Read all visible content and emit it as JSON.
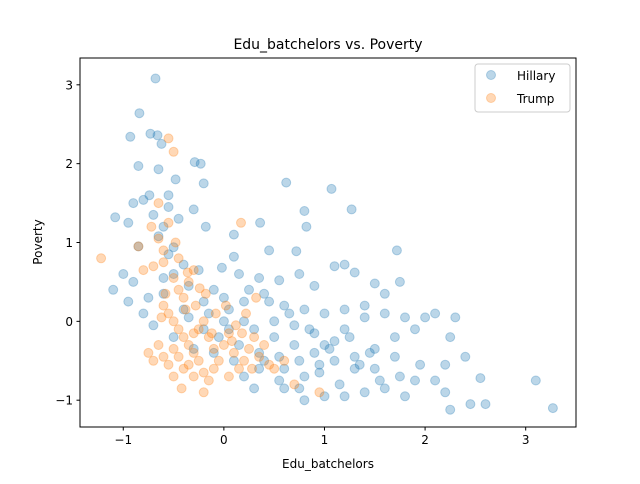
{
  "chart_data": {
    "type": "scatter",
    "title": "Edu_batchelors vs. Poverty",
    "xlabel": "Edu_batchelors",
    "ylabel": "Poverty",
    "xlim": [
      -1.43,
      3.5
    ],
    "ylim": [
      -1.34,
      3.34
    ],
    "xticks": [
      -1,
      0,
      1,
      2,
      3
    ],
    "yticks": [
      -1,
      0,
      1,
      2,
      3
    ],
    "xtick_labels": [
      "−1",
      "0",
      "1",
      "2",
      "3"
    ],
    "ytick_labels": [
      "−1",
      "0",
      "1",
      "2",
      "3"
    ],
    "grid": false,
    "legend_position": "top-right",
    "series": [
      {
        "name": "Hillary",
        "color": "#1f77b4",
        "alpha": 0.3,
        "points": [
          [
            -0.68,
            3.08
          ],
          [
            -0.84,
            2.64
          ],
          [
            -0.66,
            2.36
          ],
          [
            -0.73,
            2.38
          ],
          [
            -0.93,
            2.34
          ],
          [
            -0.62,
            2.25
          ],
          [
            -0.29,
            2.02
          ],
          [
            -0.23,
            2.0
          ],
          [
            -0.48,
            1.8
          ],
          [
            -0.85,
            1.97
          ],
          [
            -0.65,
            1.93
          ],
          [
            -0.2,
            1.75
          ],
          [
            -0.74,
            1.6
          ],
          [
            -0.8,
            1.54
          ],
          [
            -0.55,
            1.45
          ],
          [
            -0.3,
            1.42
          ],
          [
            -0.45,
            1.3
          ],
          [
            -0.6,
            1.2
          ],
          [
            -1.08,
            1.32
          ],
          [
            -0.95,
            1.25
          ],
          [
            -0.5,
            0.94
          ],
          [
            -0.65,
            1.08
          ],
          [
            -0.55,
            0.85
          ],
          [
            -0.4,
            0.72
          ],
          [
            -0.18,
            1.2
          ],
          [
            0.1,
            1.1
          ],
          [
            0.62,
            1.76
          ],
          [
            1.07,
            1.68
          ],
          [
            1.27,
            1.42
          ],
          [
            0.8,
            1.4
          ],
          [
            0.36,
            1.25
          ],
          [
            0.82,
            1.2
          ],
          [
            0.72,
            0.89
          ],
          [
            0.45,
            0.9
          ],
          [
            0.1,
            0.82
          ],
          [
            -0.02,
            0.68
          ],
          [
            0.15,
            0.6
          ],
          [
            0.35,
            0.55
          ],
          [
            0.55,
            0.52
          ],
          [
            0.75,
            0.6
          ],
          [
            0.9,
            0.45
          ],
          [
            1.1,
            0.7
          ],
          [
            1.2,
            0.72
          ],
          [
            1.3,
            0.62
          ],
          [
            1.5,
            0.48
          ],
          [
            1.72,
            0.9
          ],
          [
            1.75,
            0.5
          ],
          [
            1.6,
            0.35
          ],
          [
            -1.0,
            0.6
          ],
          [
            -1.1,
            0.4
          ],
          [
            -0.95,
            0.25
          ],
          [
            -0.9,
            0.5
          ],
          [
            -0.75,
            0.3
          ],
          [
            -0.6,
            0.35
          ],
          [
            -0.8,
            0.1
          ],
          [
            -0.7,
            -0.05
          ],
          [
            -0.4,
            0.15
          ],
          [
            -0.2,
            0.25
          ],
          [
            0.0,
            0.3
          ],
          [
            0.2,
            0.25
          ],
          [
            0.4,
            0.35
          ],
          [
            0.6,
            0.2
          ],
          [
            0.8,
            0.15
          ],
          [
            1.0,
            0.1
          ],
          [
            1.2,
            0.15
          ],
          [
            1.4,
            0.2
          ],
          [
            1.6,
            0.1
          ],
          [
            1.8,
            0.05
          ],
          [
            2.0,
            0.05
          ],
          [
            2.1,
            0.1
          ],
          [
            2.3,
            0.05
          ],
          [
            2.25,
            -0.2
          ],
          [
            2.4,
            -0.45
          ],
          [
            2.2,
            -0.55
          ],
          [
            1.95,
            -0.55
          ],
          [
            1.75,
            -0.7
          ],
          [
            1.6,
            -0.85
          ],
          [
            1.4,
            -0.9
          ],
          [
            1.2,
            -0.95
          ],
          [
            1.0,
            -0.95
          ],
          [
            0.8,
            -1.0
          ],
          [
            0.6,
            -0.85
          ],
          [
            0.3,
            -0.85
          ],
          [
            0.2,
            -0.7
          ],
          [
            0.1,
            -0.5
          ],
          [
            -0.1,
            -0.4
          ],
          [
            -0.3,
            -0.35
          ],
          [
            -0.5,
            -0.2
          ],
          [
            0.05,
            -0.1
          ],
          [
            0.3,
            -0.1
          ],
          [
            0.5,
            -0.2
          ],
          [
            0.7,
            -0.3
          ],
          [
            0.9,
            -0.4
          ],
          [
            1.1,
            -0.5
          ],
          [
            1.3,
            -0.6
          ],
          [
            1.5,
            -0.35
          ],
          [
            1.7,
            -0.2
          ],
          [
            1.9,
            -0.1
          ],
          [
            0.4,
            -0.5
          ],
          [
            0.6,
            -0.6
          ],
          [
            0.8,
            -0.7
          ],
          [
            1.0,
            -0.3
          ],
          [
            1.2,
            -0.1
          ],
          [
            1.4,
            0.05
          ],
          [
            0.2,
            0.0
          ],
          [
            0.0,
            0.0
          ],
          [
            -0.2,
            -0.1
          ],
          [
            0.5,
            0.0
          ],
          [
            0.7,
            -0.05
          ],
          [
            0.9,
            -0.15
          ],
          [
            1.1,
            -0.25
          ],
          [
            1.3,
            -0.45
          ],
          [
            1.5,
            -0.6
          ],
          [
            1.7,
            -0.45
          ],
          [
            1.9,
            -0.75
          ],
          [
            2.1,
            -0.75
          ],
          [
            2.45,
            -1.05
          ],
          [
            2.6,
            -1.05
          ],
          [
            2.55,
            -0.72
          ],
          [
            2.25,
            -1.12
          ],
          [
            3.1,
            -0.75
          ],
          [
            3.27,
            -1.1
          ],
          [
            2.2,
            -0.9
          ],
          [
            1.8,
            -0.95
          ],
          [
            1.55,
            -0.75
          ],
          [
            0.35,
            -0.6
          ],
          [
            0.55,
            -0.75
          ],
          [
            0.75,
            -0.85
          ],
          [
            0.95,
            -0.65
          ],
          [
            1.15,
            -0.8
          ],
          [
            1.35,
            -0.55
          ],
          [
            -0.35,
            0.05
          ],
          [
            -0.15,
            0.1
          ],
          [
            0.05,
            0.15
          ],
          [
            0.25,
            0.4
          ],
          [
            0.45,
            0.25
          ],
          [
            0.65,
            0.1
          ],
          [
            0.85,
            -0.1
          ],
          [
            1.05,
            -0.35
          ],
          [
            1.25,
            -0.2
          ],
          [
            1.45,
            -0.4
          ],
          [
            -0.05,
            -0.2
          ],
          [
            0.15,
            -0.3
          ],
          [
            0.35,
            -0.4
          ],
          [
            0.55,
            -0.45
          ],
          [
            0.75,
            -0.5
          ],
          [
            0.95,
            -0.55
          ],
          [
            -0.6,
            0.55
          ],
          [
            -0.5,
            0.6
          ],
          [
            -0.35,
            0.45
          ],
          [
            -0.25,
            0.65
          ],
          [
            -0.1,
            0.4
          ],
          [
            -0.85,
            0.95
          ],
          [
            -0.7,
            1.35
          ],
          [
            -0.9,
            1.5
          ],
          [
            -0.55,
            1.6
          ]
        ]
      },
      {
        "name": "Trump",
        "color": "#ff7f0e",
        "alpha": 0.3,
        "points": [
          [
            -1.22,
            0.8
          ],
          [
            -0.55,
            2.32
          ],
          [
            -0.5,
            2.15
          ],
          [
            -0.65,
            1.5
          ],
          [
            -0.85,
            0.95
          ],
          [
            -0.8,
            0.65
          ],
          [
            -0.7,
            0.7
          ],
          [
            -0.6,
            0.9
          ],
          [
            -0.5,
            0.55
          ],
          [
            -0.45,
            0.8
          ],
          [
            -0.4,
            0.3
          ],
          [
            -0.35,
            0.5
          ],
          [
            -0.3,
            0.65
          ],
          [
            0.17,
            1.25
          ],
          [
            -0.6,
            0.2
          ],
          [
            -0.55,
            0.1
          ],
          [
            -0.5,
            0.0
          ],
          [
            -0.45,
            -0.1
          ],
          [
            -0.4,
            -0.2
          ],
          [
            -0.35,
            -0.3
          ],
          [
            -0.3,
            -0.4
          ],
          [
            -0.25,
            -0.1
          ],
          [
            -0.2,
            0.0
          ],
          [
            -0.15,
            -0.2
          ],
          [
            -0.1,
            -0.35
          ],
          [
            -0.05,
            -0.5
          ],
          [
            0.0,
            -0.3
          ],
          [
            0.05,
            -0.15
          ],
          [
            0.1,
            -0.4
          ],
          [
            0.15,
            -0.6
          ],
          [
            0.2,
            -0.5
          ],
          [
            0.25,
            -0.35
          ],
          [
            0.3,
            -0.2
          ],
          [
            0.35,
            -0.45
          ],
          [
            0.4,
            -0.3
          ],
          [
            0.45,
            -0.55
          ],
          [
            0.5,
            -0.6
          ],
          [
            -0.65,
            -0.3
          ],
          [
            -0.7,
            -0.5
          ],
          [
            -0.75,
            -0.4
          ],
          [
            -0.6,
            -0.45
          ],
          [
            -0.55,
            -0.55
          ],
          [
            -0.5,
            -0.35
          ],
          [
            -0.45,
            -0.45
          ],
          [
            -0.4,
            -0.6
          ],
          [
            -0.35,
            -0.55
          ],
          [
            -0.3,
            -0.7
          ],
          [
            -0.25,
            -0.5
          ],
          [
            -0.2,
            -0.65
          ],
          [
            -0.15,
            -0.75
          ],
          [
            -0.1,
            -0.6
          ],
          [
            0.05,
            -0.7
          ],
          [
            -0.42,
            -0.85
          ],
          [
            -0.2,
            -0.9
          ],
          [
            -0.45,
            0.4
          ],
          [
            -0.38,
            0.15
          ],
          [
            -0.28,
            0.2
          ],
          [
            -0.18,
            0.35
          ],
          [
            -0.08,
            0.1
          ],
          [
            0.02,
            0.2
          ],
          [
            0.12,
            -0.05
          ],
          [
            0.22,
            0.1
          ],
          [
            0.32,
            0.3
          ],
          [
            -0.6,
            0.75
          ],
          [
            -0.58,
            0.35
          ],
          [
            -0.62,
            0.05
          ],
          [
            0.6,
            -0.5
          ],
          [
            0.7,
            -0.8
          ],
          [
            0.95,
            -0.9
          ],
          [
            -0.5,
            -0.7
          ],
          [
            -0.3,
            -0.15
          ],
          [
            -0.12,
            -0.15
          ],
          [
            0.08,
            -0.25
          ],
          [
            0.18,
            -0.15
          ],
          [
            0.28,
            -0.6
          ],
          [
            -0.65,
            1.05
          ],
          [
            -0.72,
            1.2
          ],
          [
            -0.55,
            1.25
          ],
          [
            -0.48,
            1.0
          ],
          [
            -0.36,
            0.62
          ],
          [
            -0.24,
            0.42
          ]
        ]
      }
    ]
  }
}
